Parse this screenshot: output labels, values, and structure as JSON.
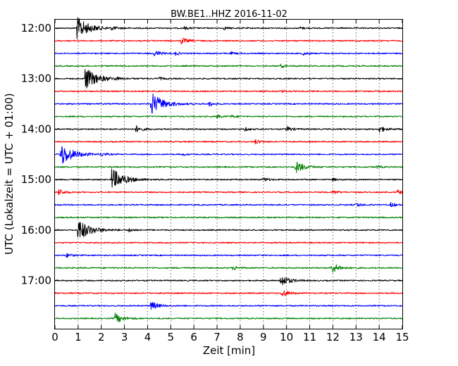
{
  "chart_data": {
    "type": "line",
    "title": "BW.BE1..HHZ 2016-11-02",
    "xlabel": "Zeit  [min]",
    "ylabel": "UTC (Lokalzeit = UTC + 01:00)",
    "xlim": [
      0,
      15
    ],
    "x_ticks": [
      0,
      1,
      2,
      3,
      4,
      5,
      6,
      7,
      8,
      9,
      10,
      11,
      12,
      13,
      14,
      15
    ],
    "y_tick_labels": [
      "12:00",
      "13:00",
      "14:00",
      "15:00",
      "16:00",
      "17:00"
    ],
    "grid": "vertical dotted at each minute",
    "trace_colors": [
      "#000000",
      "#ff0000",
      "#0000ff",
      "#008000"
    ],
    "series": [
      {
        "start": "12:00",
        "events": [
          {
            "t": 0.95,
            "amp": 1.0
          },
          {
            "t": 2.45,
            "amp": 0.15
          },
          {
            "t": 5.6,
            "amp": 0.12
          },
          {
            "t": 7.3,
            "amp": 0.12
          },
          {
            "t": 10.6,
            "amp": 0.1
          }
        ]
      },
      {
        "start": "12:15",
        "events": [
          {
            "t": 5.45,
            "amp": 0.3
          }
        ]
      },
      {
        "start": "12:30",
        "events": [
          {
            "t": 4.3,
            "amp": 0.3
          },
          {
            "t": 5.2,
            "amp": 0.15
          },
          {
            "t": 7.6,
            "amp": 0.12
          },
          {
            "t": 10.7,
            "amp": 0.15
          }
        ]
      },
      {
        "start": "12:45",
        "events": [
          {
            "t": 9.75,
            "amp": 0.15
          }
        ]
      },
      {
        "start": "13:00",
        "events": [
          {
            "t": 1.3,
            "amp": 1.0
          },
          {
            "t": 2.6,
            "amp": 0.1
          },
          {
            "t": 4.5,
            "amp": 0.12
          }
        ]
      },
      {
        "start": "13:15",
        "events": [
          {
            "t": 9.8,
            "amp": 0.1
          }
        ]
      },
      {
        "start": "13:30",
        "events": [
          {
            "t": 4.15,
            "amp": 1.0
          },
          {
            "t": 6.65,
            "amp": 0.2
          }
        ]
      },
      {
        "start": "13:45",
        "events": [
          {
            "t": 7.0,
            "amp": 0.15
          },
          {
            "t": 7.6,
            "amp": 0.12
          }
        ]
      },
      {
        "start": "14:00",
        "events": [
          {
            "t": 3.5,
            "amp": 0.3
          },
          {
            "t": 8.2,
            "amp": 0.15
          },
          {
            "t": 10.0,
            "amp": 0.25
          },
          {
            "t": 14.0,
            "amp": 0.3
          }
        ]
      },
      {
        "start": "14:15",
        "events": [
          {
            "t": 8.65,
            "amp": 0.2
          }
        ]
      },
      {
        "start": "14:30",
        "events": [
          {
            "t": 0.25,
            "amp": 1.0
          },
          {
            "t": 2.0,
            "amp": 0.15
          },
          {
            "t": 5.5,
            "amp": 0.1
          }
        ]
      },
      {
        "start": "14:45",
        "events": [
          {
            "t": 10.4,
            "amp": 0.55
          },
          {
            "t": 13.9,
            "amp": 0.12
          }
        ]
      },
      {
        "start": "15:00",
        "events": [
          {
            "t": 2.45,
            "amp": 1.0
          },
          {
            "t": 9.0,
            "amp": 0.2
          },
          {
            "t": 12.0,
            "amp": 0.12
          }
        ]
      },
      {
        "start": "15:15",
        "events": [
          {
            "t": 0.15,
            "amp": 0.3
          },
          {
            "t": 12.0,
            "amp": 0.2
          },
          {
            "t": 14.8,
            "amp": 0.2
          }
        ]
      },
      {
        "start": "15:30",
        "events": [
          {
            "t": 13.0,
            "amp": 0.2
          },
          {
            "t": 14.5,
            "amp": 0.2
          }
        ]
      },
      {
        "start": "15:45",
        "events": []
      },
      {
        "start": "16:00",
        "events": [
          {
            "t": 1.0,
            "amp": 1.0
          },
          {
            "t": 3.2,
            "amp": 0.15
          }
        ]
      },
      {
        "start": "16:15",
        "events": []
      },
      {
        "start": "16:30",
        "events": [
          {
            "t": 0.5,
            "amp": 0.2
          }
        ]
      },
      {
        "start": "16:45",
        "events": [
          {
            "t": 7.7,
            "amp": 0.2
          },
          {
            "t": 11.95,
            "amp": 0.5
          }
        ]
      },
      {
        "start": "17:00",
        "events": [
          {
            "t": 9.75,
            "amp": 0.55
          }
        ]
      },
      {
        "start": "17:15",
        "events": [
          {
            "t": 9.8,
            "amp": 0.35
          }
        ]
      },
      {
        "start": "17:30",
        "events": [
          {
            "t": 4.15,
            "amp": 0.4
          }
        ]
      },
      {
        "start": "17:45",
        "events": [
          {
            "t": 2.6,
            "amp": 0.45
          }
        ]
      }
    ]
  }
}
